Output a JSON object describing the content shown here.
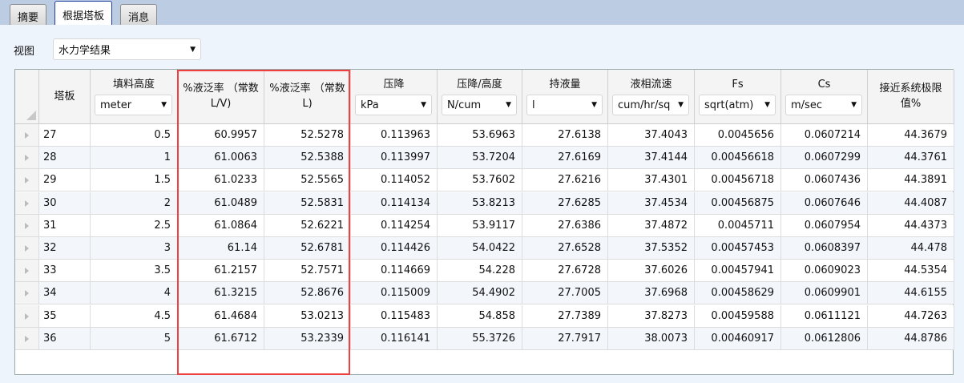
{
  "tabs": [
    {
      "label": "摘要"
    },
    {
      "label": "根据塔板"
    },
    {
      "label": "消息"
    }
  ],
  "view": {
    "label": "视图",
    "value": "水力学结果"
  },
  "columns": [
    {
      "label": "塔板",
      "unit": null
    },
    {
      "label": "填料高度",
      "unit": "meter"
    },
    {
      "label": "%液泛率 （常数L/V)",
      "unit": null
    },
    {
      "label": "%液泛率 （常数L)",
      "unit": null
    },
    {
      "label": "压降",
      "unit": "kPa"
    },
    {
      "label": "压降/高度",
      "unit": "N/cum"
    },
    {
      "label": "持液量",
      "unit": "l"
    },
    {
      "label": "液相流速",
      "unit": "cum/hr/sq"
    },
    {
      "label": "Fs",
      "unit": "sqrt(atm)"
    },
    {
      "label": "Cs",
      "unit": "m/sec"
    },
    {
      "label": "接近系统极限值%",
      "unit": null
    }
  ],
  "rows": [
    [
      "27",
      "0.5",
      "60.9957",
      "52.5278",
      "0.113963",
      "53.6963",
      "27.6138",
      "37.4043",
      "0.0045656",
      "0.0607214",
      "44.3679"
    ],
    [
      "28",
      "1",
      "61.0063",
      "52.5388",
      "0.113997",
      "53.7204",
      "27.6169",
      "37.4144",
      "0.00456618",
      "0.0607299",
      "44.3761"
    ],
    [
      "29",
      "1.5",
      "61.0233",
      "52.5565",
      "0.114052",
      "53.7602",
      "27.6216",
      "37.4301",
      "0.00456718",
      "0.0607436",
      "44.3891"
    ],
    [
      "30",
      "2",
      "61.0489",
      "52.5831",
      "0.114134",
      "53.8213",
      "27.6285",
      "37.4534",
      "0.00456875",
      "0.0607646",
      "44.4087"
    ],
    [
      "31",
      "2.5",
      "61.0864",
      "52.6221",
      "0.114254",
      "53.9117",
      "27.6386",
      "37.4872",
      "0.0045711",
      "0.0607954",
      "44.4373"
    ],
    [
      "32",
      "3",
      "61.14",
      "52.6781",
      "0.114426",
      "54.0422",
      "27.6528",
      "37.5352",
      "0.00457453",
      "0.0608397",
      "44.478"
    ],
    [
      "33",
      "3.5",
      "61.2157",
      "52.7571",
      "0.114669",
      "54.228",
      "27.6728",
      "37.6026",
      "0.00457941",
      "0.0609023",
      "44.5354"
    ],
    [
      "34",
      "4",
      "61.3215",
      "52.8676",
      "0.115009",
      "54.4902",
      "27.7005",
      "37.6968",
      "0.00458629",
      "0.0609901",
      "44.6155"
    ],
    [
      "35",
      "4.5",
      "61.4684",
      "53.0213",
      "0.115483",
      "54.858",
      "27.7389",
      "37.8273",
      "0.00459588",
      "0.0611121",
      "44.7263"
    ],
    [
      "36",
      "5",
      "61.6712",
      "53.2339",
      "0.116141",
      "55.3726",
      "27.7917",
      "38.0073",
      "0.00460917",
      "0.0612806",
      "44.8786"
    ]
  ],
  "highlight_color": "#f04040"
}
